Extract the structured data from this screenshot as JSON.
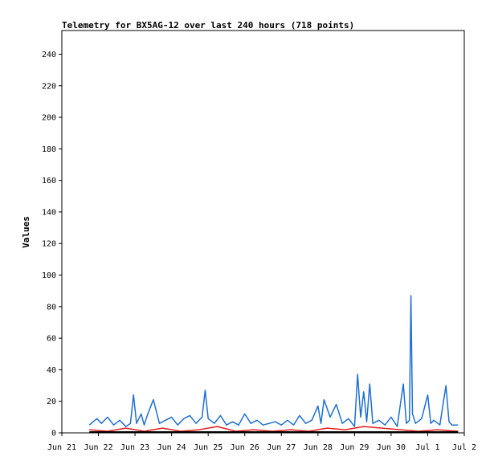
{
  "chart_data": {
    "type": "line",
    "title": "Telemetry for BX5AG-12 over last 240 hours (718 points)",
    "ylabel": "Values",
    "xlabel": "",
    "ylim": [
      0,
      255
    ],
    "xlim": [
      "2020-06-21",
      "2020-07-02"
    ],
    "y_ticks": [
      0,
      20,
      40,
      60,
      80,
      100,
      120,
      140,
      160,
      180,
      200,
      220,
      240
    ],
    "x_ticks": [
      {
        "date": "2020-06-21",
        "label": "Jun 21"
      },
      {
        "date": "2020-06-22",
        "label": "Jun 22"
      },
      {
        "date": "2020-06-23",
        "label": "Jun 23"
      },
      {
        "date": "2020-06-24",
        "label": "Jun 24"
      },
      {
        "date": "2020-06-25",
        "label": "Jun 25"
      },
      {
        "date": "2020-06-26",
        "label": "Jun 26"
      },
      {
        "date": "2020-06-27",
        "label": "Jun 27"
      },
      {
        "date": "2020-06-28",
        "label": "Jun 28"
      },
      {
        "date": "2020-06-29",
        "label": "Jun 29"
      },
      {
        "date": "2020-06-30",
        "label": "Jun 30"
      },
      {
        "date": "2020-07-01",
        "label": "Jul 1"
      },
      {
        "date": "2020-07-02",
        "label": "Jul 2"
      }
    ],
    "grid": false,
    "legend": "none",
    "colors": {
      "blue": "#1f6fd0",
      "red": "#e02020",
      "black": "#000000"
    },
    "series": [
      {
        "color": "#1f6fd0",
        "x": [
          "2020-06-21 18:00",
          "2020-06-21 23:00",
          "2020-06-22 02:00",
          "2020-06-22 06:00",
          "2020-06-22 10:00",
          "2020-06-22 14:00",
          "2020-06-22 18:00",
          "2020-06-22 21:00",
          "2020-06-22 23:00",
          "2020-06-23 01:00",
          "2020-06-23 04:00",
          "2020-06-23 06:00",
          "2020-06-23 08:00",
          "2020-06-23 12:00",
          "2020-06-23 16:00",
          "2020-06-23 20:00",
          "2020-06-24 00:00",
          "2020-06-24 04:00",
          "2020-06-24 08:00",
          "2020-06-24 12:00",
          "2020-06-24 16:00",
          "2020-06-24 20:00",
          "2020-06-24 22:00",
          "2020-06-25 00:00",
          "2020-06-25 04:00",
          "2020-06-25 08:00",
          "2020-06-25 12:00",
          "2020-06-25 16:00",
          "2020-06-25 20:00",
          "2020-06-26 00:00",
          "2020-06-26 04:00",
          "2020-06-26 08:00",
          "2020-06-26 12:00",
          "2020-06-26 16:00",
          "2020-06-26 20:00",
          "2020-06-27 00:00",
          "2020-06-27 04:00",
          "2020-06-27 08:00",
          "2020-06-27 12:00",
          "2020-06-27 16:00",
          "2020-06-27 20:00",
          "2020-06-28 00:00",
          "2020-06-28 02:00",
          "2020-06-28 04:00",
          "2020-06-28 08:00",
          "2020-06-28 12:00",
          "2020-06-28 16:00",
          "2020-06-28 20:00",
          "2020-06-29 00:00",
          "2020-06-29 02:00",
          "2020-06-29 04:00",
          "2020-06-29 06:00",
          "2020-06-29 08:00",
          "2020-06-29 10:00",
          "2020-06-29 12:00",
          "2020-06-29 16:00",
          "2020-06-29 20:00",
          "2020-06-30 00:00",
          "2020-06-30 04:00",
          "2020-06-30 08:00",
          "2020-06-30 10:00",
          "2020-06-30 12:00",
          "2020-06-30 13:00",
          "2020-06-30 14:00",
          "2020-06-30 16:00",
          "2020-06-30 20:00",
          "2020-07-01 00:00",
          "2020-07-01 02:00",
          "2020-07-01 04:00",
          "2020-07-01 08:00",
          "2020-07-01 12:00",
          "2020-07-01 14:00",
          "2020-07-01 16:00",
          "2020-07-01 20:00"
        ],
        "y": [
          5,
          9,
          6,
          10,
          5,
          8,
          4,
          6,
          24,
          6,
          12,
          5,
          11,
          21,
          6,
          8,
          10,
          5,
          9,
          11,
          6,
          10,
          27,
          9,
          6,
          11,
          5,
          7,
          5,
          12,
          6,
          8,
          5,
          6,
          7,
          5,
          8,
          5,
          11,
          6,
          8,
          17,
          6,
          21,
          10,
          18,
          6,
          9,
          4,
          37,
          10,
          26,
          7,
          31,
          6,
          8,
          5,
          10,
          4,
          31,
          6,
          8,
          87,
          12,
          6,
          9,
          24,
          6,
          8,
          5,
          30,
          7,
          5,
          5
        ]
      },
      {
        "color": "#e02020",
        "x": [
          "2020-06-21 18:00",
          "2020-06-22 06:00",
          "2020-06-22 18:00",
          "2020-06-23 06:00",
          "2020-06-23 18:00",
          "2020-06-24 06:00",
          "2020-06-24 18:00",
          "2020-06-25 06:00",
          "2020-06-25 18:00",
          "2020-06-26 06:00",
          "2020-06-26 18:00",
          "2020-06-27 06:00",
          "2020-06-27 18:00",
          "2020-06-28 06:00",
          "2020-06-28 18:00",
          "2020-06-29 06:00",
          "2020-06-29 18:00",
          "2020-06-30 06:00",
          "2020-06-30 18:00",
          "2020-07-01 06:00",
          "2020-07-01 20:00"
        ],
        "y": [
          2,
          1,
          3,
          1,
          3,
          1,
          2,
          4,
          1,
          2,
          1,
          2,
          1,
          3,
          2,
          4,
          3,
          2,
          1,
          2,
          1
        ]
      },
      {
        "color": "#000000",
        "x": [
          "2020-06-21 18:00",
          "2020-07-01 20:00"
        ],
        "y": [
          0.5,
          0.5
        ]
      }
    ]
  }
}
